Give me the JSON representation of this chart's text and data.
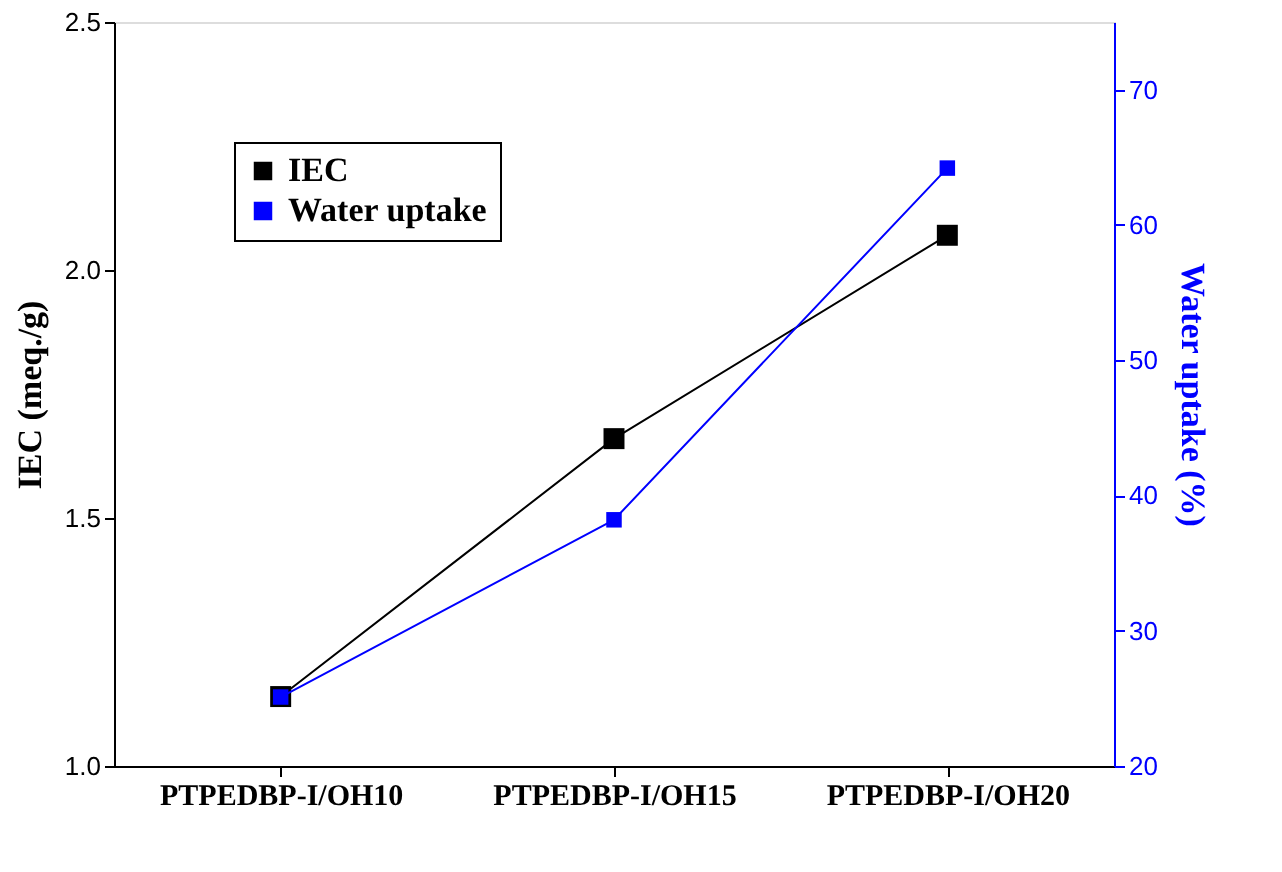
{
  "chart_data": {
    "type": "line",
    "categories": [
      "PTPEDBP-I/OH10",
      "PTPEDBP-I/OH15",
      "PTPEDBP-I/OH20"
    ],
    "series": [
      {
        "name": "IEC",
        "color": "#000000",
        "values": [
          1.14,
          1.66,
          2.07
        ]
      },
      {
        "name": "Water uptake",
        "color": "#0000ff",
        "values": [
          25.1,
          38.2,
          64.2
        ],
        "axis": "y2"
      }
    ],
    "ylabel": "IEC (meq./g)",
    "y2label": "Water uptake (%)",
    "ylim": [
      1.0,
      2.5
    ],
    "yticks": [
      {
        "value": 1.0,
        "label": "1.0"
      },
      {
        "value": 1.5,
        "label": "1.5"
      },
      {
        "value": 2.0,
        "label": "2.0"
      },
      {
        "value": 2.5,
        "label": "2.5"
      }
    ],
    "y2lim": [
      20,
      75
    ],
    "y2ticks": [
      20,
      30,
      40,
      50,
      60,
      70
    ],
    "legend": "top left",
    "marker": "square",
    "line_style": "solid",
    "grid": false
  }
}
